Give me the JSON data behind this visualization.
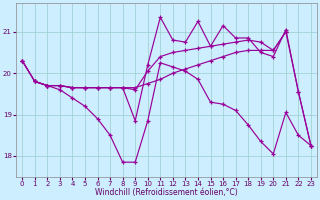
{
  "xlabel": "Windchill (Refroidissement éolien,°C)",
  "background_color": "#cceeff",
  "line_color": "#990099",
  "xlim": [
    -0.5,
    23.5
  ],
  "ylim": [
    17.5,
    21.7
  ],
  "yticks": [
    18,
    19,
    20,
    21
  ],
  "xticks": [
    0,
    1,
    2,
    3,
    4,
    5,
    6,
    7,
    8,
    9,
    10,
    11,
    12,
    13,
    14,
    15,
    16,
    17,
    18,
    19,
    20,
    21,
    22,
    23
  ],
  "line1_x": [
    0,
    1,
    2,
    3,
    4,
    5,
    6,
    7,
    8,
    9,
    10,
    11,
    12,
    13,
    14,
    15,
    16,
    17,
    18,
    19,
    20,
    21,
    22,
    23
  ],
  "line1_y": [
    20.3,
    19.8,
    19.7,
    19.6,
    19.4,
    19.2,
    18.9,
    18.5,
    17.85,
    17.85,
    18.85,
    20.25,
    20.15,
    20.05,
    19.85,
    19.3,
    19.25,
    19.1,
    18.75,
    18.35,
    18.05,
    19.05,
    18.5,
    18.25
  ],
  "line2_x": [
    0,
    1,
    2,
    3,
    4,
    5,
    6,
    7,
    8,
    9,
    10,
    11,
    12,
    13,
    14,
    15,
    16,
    17,
    18,
    19,
    20,
    21,
    22,
    23
  ],
  "line2_y": [
    20.3,
    19.8,
    19.7,
    19.7,
    19.65,
    19.65,
    19.65,
    19.65,
    19.65,
    19.6,
    20.05,
    20.4,
    20.5,
    20.55,
    20.6,
    20.65,
    20.7,
    20.75,
    20.8,
    20.75,
    20.55,
    21.0,
    19.55,
    18.25
  ],
  "line3_x": [
    0,
    1,
    2,
    3,
    4,
    5,
    6,
    7,
    8,
    9,
    10,
    11,
    12,
    13,
    14,
    15,
    16,
    17,
    18,
    19,
    20,
    21,
    22,
    23
  ],
  "line3_y": [
    20.3,
    19.8,
    19.7,
    19.7,
    19.65,
    19.65,
    19.65,
    19.65,
    19.65,
    18.85,
    20.2,
    21.35,
    20.8,
    20.75,
    21.25,
    20.65,
    21.15,
    20.85,
    20.85,
    20.5,
    20.4,
    21.05,
    19.55,
    18.25
  ],
  "line4_x": [
    1,
    2,
    3,
    4,
    5,
    6,
    7,
    8,
    9,
    10,
    11,
    12,
    13,
    14,
    15,
    16,
    17,
    18,
    19,
    20,
    21
  ],
  "line4_y": [
    19.8,
    19.7,
    19.7,
    19.65,
    19.65,
    19.65,
    19.65,
    19.65,
    19.65,
    19.75,
    19.85,
    20.0,
    20.1,
    20.2,
    20.3,
    20.4,
    20.5,
    20.55,
    20.55,
    20.55,
    21.0
  ]
}
